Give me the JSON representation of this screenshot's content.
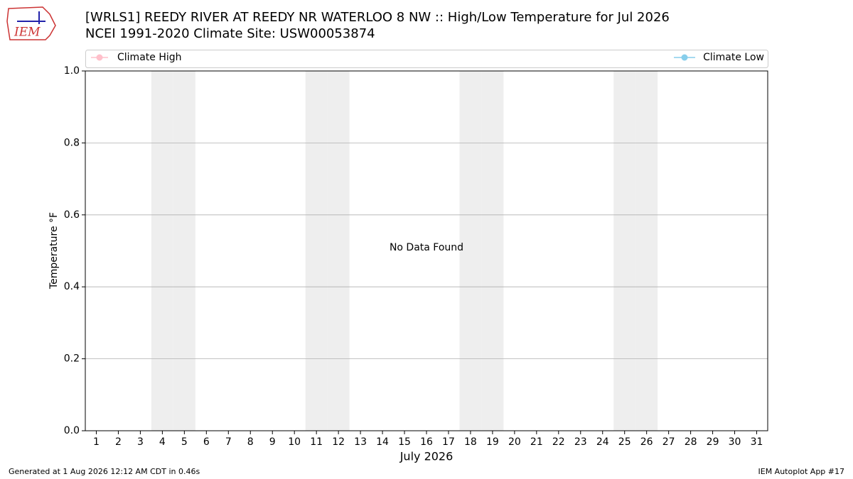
{
  "logo": "IEM",
  "chart_data": {
    "type": "line",
    "title": "[WRLS1] REEDY RIVER  AT REEDY NR WATERLOO 8 NW :: High/Low Temperature for Jul 2026",
    "subtitle": "NCEI 1991-2020 Climate Site: USW00053874",
    "ylabel": "Temperature °F",
    "xlabel": "July 2026",
    "annotation": "No Data Found",
    "x": [
      1,
      2,
      3,
      4,
      5,
      6,
      7,
      8,
      9,
      10,
      11,
      12,
      13,
      14,
      15,
      16,
      17,
      18,
      19,
      20,
      21,
      22,
      23,
      24,
      25,
      26,
      27,
      28,
      29,
      30,
      31
    ],
    "series": [
      {
        "name": "Climate High",
        "color": "#ffc0cb",
        "values": [
          null,
          null,
          null,
          null,
          null,
          null,
          null,
          null,
          null,
          null,
          null,
          null,
          null,
          null,
          null,
          null,
          null,
          null,
          null,
          null,
          null,
          null,
          null,
          null,
          null,
          null,
          null,
          null,
          null,
          null,
          null
        ]
      },
      {
        "name": "Climate Low",
        "color": "#87ceeb",
        "values": [
          null,
          null,
          null,
          null,
          null,
          null,
          null,
          null,
          null,
          null,
          null,
          null,
          null,
          null,
          null,
          null,
          null,
          null,
          null,
          null,
          null,
          null,
          null,
          null,
          null,
          null,
          null,
          null,
          null,
          null,
          null
        ]
      }
    ],
    "shaded_days": [
      4,
      5,
      11,
      12,
      18,
      19,
      25,
      26
    ],
    "xlim": [
      0.5,
      31.5
    ],
    "xticks": [
      1,
      2,
      3,
      4,
      5,
      6,
      7,
      8,
      9,
      10,
      11,
      12,
      13,
      14,
      15,
      16,
      17,
      18,
      19,
      20,
      21,
      22,
      23,
      24,
      25,
      26,
      27,
      28,
      29,
      30,
      31
    ],
    "ylim": [
      0,
      1
    ],
    "yticks": [
      {
        "value": 0,
        "label": "0.0"
      },
      0.2,
      0.4,
      0.6,
      0.8,
      {
        "value": 1,
        "label": "1.0"
      }
    ],
    "grid": true,
    "footer_left": "Generated at 1 Aug 2026 12:12 AM CDT in 0.46s",
    "footer_right": "IEM Autoplot App #17"
  }
}
